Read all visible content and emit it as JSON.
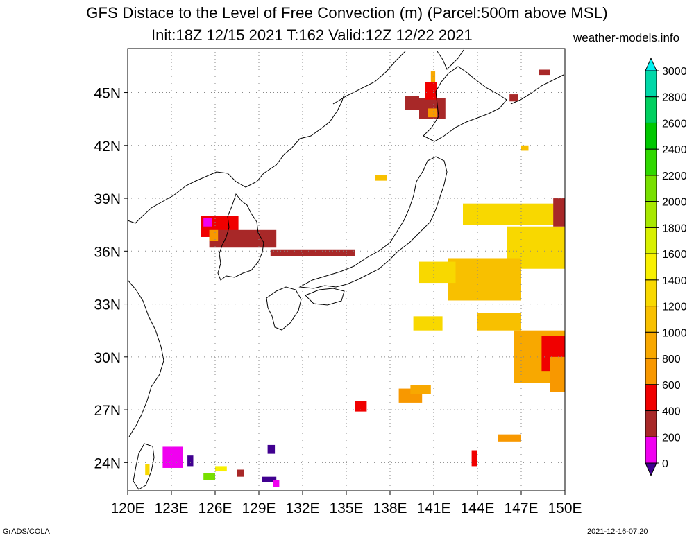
{
  "header": {
    "title": "GFS Distace to the Level of Free Convection (m) (Parcel:500m above MSL)",
    "subtitle": "Init:18Z 12/15 2021 T:162 Valid:12Z 12/22 2021",
    "site": "weather-models.info"
  },
  "footer": {
    "left": "GrADS/COLA",
    "right": "2021-12-16-07:20"
  },
  "map": {
    "lon_range": [
      120,
      150
    ],
    "lat_range": [
      22.4,
      47.5
    ],
    "lat_ticks": [
      {
        "value": 45,
        "label": "45N"
      },
      {
        "value": 42,
        "label": "42N"
      },
      {
        "value": 39,
        "label": "39N"
      },
      {
        "value": 36,
        "label": "36N"
      },
      {
        "value": 33,
        "label": "33N"
      },
      {
        "value": 30,
        "label": "30N"
      },
      {
        "value": 27,
        "label": "27N"
      },
      {
        "value": 24,
        "label": "24N"
      }
    ],
    "lon_ticks": [
      {
        "value": 120,
        "label": "120E"
      },
      {
        "value": 123,
        "label": "123E"
      },
      {
        "value": 126,
        "label": "126E"
      },
      {
        "value": 129,
        "label": "129E"
      },
      {
        "value": 132,
        "label": "132E"
      },
      {
        "value": 135,
        "label": "135E"
      },
      {
        "value": 138,
        "label": "138E"
      },
      {
        "value": 141,
        "label": "141E"
      },
      {
        "value": 144,
        "label": "144E"
      },
      {
        "value": 147,
        "label": "147E"
      },
      {
        "value": 150,
        "label": "150E"
      }
    ],
    "grid": "dotted"
  },
  "legend": {
    "levels": [
      {
        "label": "3000",
        "color": "#00f0f0"
      },
      {
        "label": "2800",
        "color": "#00d8a8"
      },
      {
        "label": "2600",
        "color": "#00d060"
      },
      {
        "label": "2400",
        "color": "#00c800"
      },
      {
        "label": "2200",
        "color": "#30d800"
      },
      {
        "label": "2000",
        "color": "#78e000"
      },
      {
        "label": "1800",
        "color": "#a8e800"
      },
      {
        "label": "1600",
        "color": "#d8f000"
      },
      {
        "label": "1400",
        "color": "#f8f000"
      },
      {
        "label": "1200",
        "color": "#f8d800"
      },
      {
        "label": "1000",
        "color": "#f8c000"
      },
      {
        "label": "800",
        "color": "#f8a800"
      },
      {
        "label": "600",
        "color": "#f89800"
      },
      {
        "label": "400",
        "color": "#f00000"
      },
      {
        "label": "200",
        "color": "#a82828"
      },
      {
        "label": "0",
        "color": "#f000f0"
      }
    ],
    "below_color": "#400090",
    "above_color": "#00f0f0"
  },
  "field_cells": [
    {
      "lon": 125.0,
      "lat": 36.8,
      "w": 2.6,
      "h": 1.2,
      "v": 400
    },
    {
      "lon": 125.6,
      "lat": 36.2,
      "w": 4.6,
      "h": 1.0,
      "v": 200
    },
    {
      "lon": 129.8,
      "lat": 35.7,
      "w": 5.8,
      "h": 0.4,
      "v": 200
    },
    {
      "lon": 125.2,
      "lat": 37.4,
      "w": 0.6,
      "h": 0.5,
      "v": 0
    },
    {
      "lon": 125.6,
      "lat": 36.6,
      "w": 0.6,
      "h": 0.6,
      "v": 600
    },
    {
      "lon": 140.0,
      "lat": 43.5,
      "w": 1.8,
      "h": 1.2,
      "v": 200
    },
    {
      "lon": 140.4,
      "lat": 44.6,
      "w": 0.8,
      "h": 1.0,
      "v": 400
    },
    {
      "lon": 140.6,
      "lat": 43.6,
      "w": 0.6,
      "h": 0.5,
      "v": 600
    },
    {
      "lon": 139.0,
      "lat": 44.0,
      "w": 1.0,
      "h": 0.8,
      "v": 200
    },
    {
      "lon": 143.0,
      "lat": 37.5,
      "w": 7.0,
      "h": 1.2,
      "v": 1200
    },
    {
      "lon": 146.0,
      "lat": 35.0,
      "w": 4.0,
      "h": 2.4,
      "v": 1200
    },
    {
      "lon": 142.0,
      "lat": 33.2,
      "w": 5.0,
      "h": 2.4,
      "v": 1000
    },
    {
      "lon": 140.0,
      "lat": 34.2,
      "w": 2.5,
      "h": 1.2,
      "v": 1200
    },
    {
      "lon": 139.6,
      "lat": 31.5,
      "w": 2.0,
      "h": 0.8,
      "v": 1200
    },
    {
      "lon": 144.0,
      "lat": 31.5,
      "w": 3.0,
      "h": 1.0,
      "v": 1000
    },
    {
      "lon": 146.5,
      "lat": 28.5,
      "w": 3.5,
      "h": 3.0,
      "v": 800
    },
    {
      "lon": 148.4,
      "lat": 29.2,
      "w": 1.6,
      "h": 2.0,
      "v": 400
    },
    {
      "lon": 149.0,
      "lat": 28.0,
      "w": 1.0,
      "h": 2.0,
      "v": 600
    },
    {
      "lon": 149.2,
      "lat": 37.4,
      "w": 0.8,
      "h": 1.6,
      "v": 200
    },
    {
      "lon": 138.6,
      "lat": 27.4,
      "w": 1.6,
      "h": 0.8,
      "v": 600
    },
    {
      "lon": 139.4,
      "lat": 27.9,
      "w": 1.4,
      "h": 0.5,
      "v": 800
    },
    {
      "lon": 135.6,
      "lat": 26.9,
      "w": 0.8,
      "h": 0.6,
      "v": 400
    },
    {
      "lon": 145.4,
      "lat": 25.2,
      "w": 1.6,
      "h": 0.4,
      "v": 600
    },
    {
      "lon": 143.6,
      "lat": 23.8,
      "w": 0.4,
      "h": 0.9,
      "v": 400
    },
    {
      "lon": 122.4,
      "lat": 23.7,
      "w": 1.4,
      "h": 1.2,
      "v": 0
    },
    {
      "lon": 124.1,
      "lat": 23.8,
      "w": 0.4,
      "h": 0.6,
      "v": -100
    },
    {
      "lon": 129.2,
      "lat": 22.9,
      "w": 1.0,
      "h": 0.3,
      "v": -100
    },
    {
      "lon": 130.0,
      "lat": 22.6,
      "w": 0.4,
      "h": 0.4,
      "v": 0
    },
    {
      "lon": 129.6,
      "lat": 24.5,
      "w": 0.5,
      "h": 0.5,
      "v": -100
    },
    {
      "lon": 125.2,
      "lat": 23.0,
      "w": 0.8,
      "h": 0.4,
      "v": 2000
    },
    {
      "lon": 126.0,
      "lat": 23.5,
      "w": 0.8,
      "h": 0.3,
      "v": 1400
    },
    {
      "lon": 127.5,
      "lat": 23.2,
      "w": 0.5,
      "h": 0.4,
      "v": 200
    },
    {
      "lon": 121.2,
      "lat": 23.3,
      "w": 0.3,
      "h": 0.6,
      "v": 1200
    },
    {
      "lon": 137.0,
      "lat": 40.0,
      "w": 0.8,
      "h": 0.3,
      "v": 1000
    },
    {
      "lon": 147.0,
      "lat": 41.7,
      "w": 0.5,
      "h": 0.3,
      "v": 1000
    },
    {
      "lon": 148.2,
      "lat": 46.0,
      "w": 0.8,
      "h": 0.3,
      "v": 200
    },
    {
      "lon": 146.2,
      "lat": 44.5,
      "w": 0.6,
      "h": 0.4,
      "v": 200
    },
    {
      "lon": 140.8,
      "lat": 45.6,
      "w": 0.3,
      "h": 0.6,
      "v": 800
    }
  ]
}
